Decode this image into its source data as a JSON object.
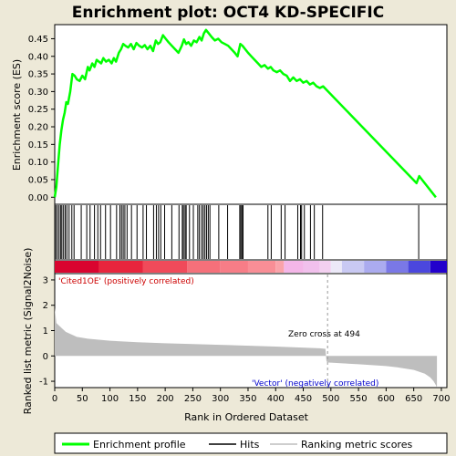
{
  "title": "Enrichment plot: OCT4 KD-SPECIFIC",
  "chart_data": [
    {
      "type": "line",
      "name": "enrichment-profile",
      "ylabel": "Enrichment score (ES)",
      "xlim": [
        0,
        710
      ],
      "ylim": [
        -0.02,
        0.49
      ],
      "y_ticks": [
        "0.00",
        "0.05",
        "0.10",
        "0.15",
        "0.20",
        "0.25",
        "0.30",
        "0.35",
        "0.40",
        "0.45"
      ],
      "line_color": "#00ff00",
      "x": [
        0,
        3,
        6,
        9,
        12,
        15,
        18,
        21,
        24,
        28,
        32,
        36,
        40,
        45,
        50,
        55,
        60,
        63,
        68,
        72,
        76,
        80,
        84,
        88,
        93,
        98,
        103,
        107,
        111,
        116,
        120,
        124,
        128,
        133,
        138,
        143,
        148,
        153,
        158,
        163,
        168,
        173,
        178,
        183,
        187,
        191,
        196,
        201,
        206,
        212,
        218,
        224,
        230,
        234,
        238,
        242,
        247,
        252,
        257,
        262,
        266,
        270,
        274,
        279,
        284,
        290,
        296,
        302,
        308,
        314,
        320,
        326,
        331,
        336,
        340,
        345,
        350,
        356,
        362,
        368,
        374,
        380,
        386,
        391,
        396,
        402,
        408,
        414,
        420,
        426,
        432,
        438,
        444,
        450,
        456,
        462,
        468,
        474,
        480,
        486,
        492,
        655,
        660,
        665,
        690
      ],
      "y": [
        0.0,
        0.03,
        0.09,
        0.15,
        0.19,
        0.22,
        0.24,
        0.27,
        0.265,
        0.3,
        0.35,
        0.345,
        0.335,
        0.33,
        0.345,
        0.335,
        0.37,
        0.36,
        0.38,
        0.37,
        0.39,
        0.385,
        0.38,
        0.395,
        0.385,
        0.39,
        0.38,
        0.395,
        0.385,
        0.41,
        0.42,
        0.435,
        0.43,
        0.425,
        0.435,
        0.42,
        0.438,
        0.43,
        0.425,
        0.432,
        0.42,
        0.43,
        0.415,
        0.445,
        0.435,
        0.44,
        0.46,
        0.45,
        0.44,
        0.43,
        0.42,
        0.41,
        0.43,
        0.448,
        0.435,
        0.44,
        0.43,
        0.445,
        0.44,
        0.455,
        0.445,
        0.465,
        0.475,
        0.465,
        0.455,
        0.445,
        0.45,
        0.44,
        0.435,
        0.43,
        0.42,
        0.41,
        0.4,
        0.435,
        0.43,
        0.42,
        0.41,
        0.4,
        0.39,
        0.38,
        0.37,
        0.375,
        0.365,
        0.37,
        0.36,
        0.355,
        0.36,
        0.35,
        0.345,
        0.33,
        0.34,
        0.33,
        0.335,
        0.325,
        0.33,
        0.32,
        0.325,
        0.315,
        0.31,
        0.315,
        0.305,
        0.04,
        0.06,
        0.05,
        0.0
      ]
    },
    {
      "type": "scatter",
      "name": "hits",
      "x": [
        2,
        5,
        8,
        11,
        13,
        16,
        19,
        22,
        26,
        31,
        35,
        48,
        58,
        64,
        72,
        78,
        83,
        92,
        101,
        112,
        118,
        121,
        124,
        127,
        131,
        139,
        149,
        160,
        166,
        179,
        184,
        188,
        192,
        199,
        212,
        225,
        231,
        233,
        236,
        238,
        244,
        251,
        259,
        262,
        266,
        269,
        272,
        275,
        278,
        281,
        297,
        313,
        335,
        337,
        339,
        341,
        386,
        392,
        410,
        417,
        440,
        445,
        447,
        452,
        463,
        470,
        485,
        659
      ]
    },
    {
      "type": "heatmap",
      "name": "rank-color-bar",
      "x_breaks": [
        0,
        80,
        160,
        240,
        300,
        350,
        400,
        415,
        450,
        480,
        500,
        520,
        560,
        600,
        640,
        680,
        710
      ],
      "colors": [
        "#d9042f",
        "#e8253d",
        "#f04a5a",
        "#f5707a",
        "#f77d87",
        "#f98e96",
        "#faa3aa",
        "#f4b6e8",
        "#f1c0ec",
        "#f3d0f0",
        "#ece9f8",
        "#c9c9f3",
        "#ababef",
        "#7a78e6",
        "#4b47dd",
        "#2200cc"
      ]
    },
    {
      "type": "area",
      "name": "ranking-metric",
      "ylabel": "Ranked list metric (Signal2Noise)",
      "xlabel": "Rank in Ordered Dataset",
      "xlim": [
        0,
        710
      ],
      "ylim": [
        -1.25,
        3.25
      ],
      "x_ticks": [
        0,
        50,
        100,
        150,
        200,
        250,
        300,
        350,
        400,
        450,
        500,
        550,
        600,
        650,
        700
      ],
      "y_ticks": [
        -1,
        0,
        1,
        2,
        3
      ],
      "x": [
        0,
        3,
        10,
        20,
        40,
        60,
        100,
        150,
        200,
        300,
        400,
        480,
        490,
        492,
        496,
        550,
        600,
        620,
        650,
        670,
        680,
        686,
        690,
        692
      ],
      "y": [
        1.9,
        1.3,
        1.15,
        0.95,
        0.75,
        0.68,
        0.6,
        0.54,
        0.5,
        0.44,
        0.37,
        0.3,
        0.28,
        -0.22,
        -0.26,
        -0.33,
        -0.4,
        -0.45,
        -0.55,
        -0.7,
        -0.85,
        -1.0,
        -1.15,
        -1.25
      ],
      "fill_color": "#bebebe",
      "zero_cross_x": 494
    }
  ],
  "annotations": {
    "positive": "'Cited1OE' (positively correlated)",
    "negative": "'Vector' (negatively correlated)",
    "zero_cross": "Zero cross at 494"
  },
  "legend": {
    "items": [
      {
        "label": "Enrichment profile",
        "color": "#00ff00"
      },
      {
        "label": "Hits",
        "color": "#000000"
      },
      {
        "label": "Ranking metric scores",
        "color": "#bebebe"
      }
    ]
  }
}
